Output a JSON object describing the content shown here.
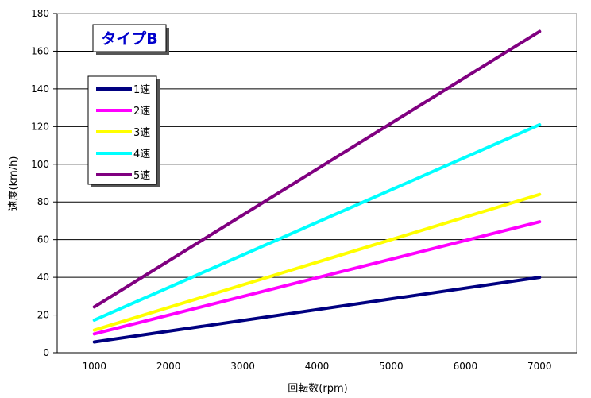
{
  "chart_data": {
    "type": "line",
    "title": "タイプB",
    "xlabel": "回転数(rpm)",
    "ylabel": "速度(km/h)",
    "x": [
      1000,
      7000
    ],
    "xticks": [
      1000,
      2000,
      3000,
      4000,
      5000,
      6000,
      7000
    ],
    "xlim": [
      500,
      7500
    ],
    "ylim": [
      0,
      180
    ],
    "yticks": [
      0,
      20,
      40,
      60,
      80,
      100,
      120,
      140,
      160,
      180
    ],
    "grid": "horizontal",
    "legend_position": "top-left",
    "series": [
      {
        "name": "1速",
        "color": "#000080",
        "values": [
          5.7,
          40
        ]
      },
      {
        "name": "2速",
        "color": "#ff00ff",
        "values": [
          10,
          69.5
        ]
      },
      {
        "name": "3速",
        "color": "#ffff00",
        "values": [
          12,
          84
        ]
      },
      {
        "name": "4速",
        "color": "#00ffff",
        "values": [
          17.3,
          121
        ]
      },
      {
        "name": "5速",
        "color": "#800080",
        "values": [
          24.3,
          170.5
        ]
      }
    ]
  }
}
